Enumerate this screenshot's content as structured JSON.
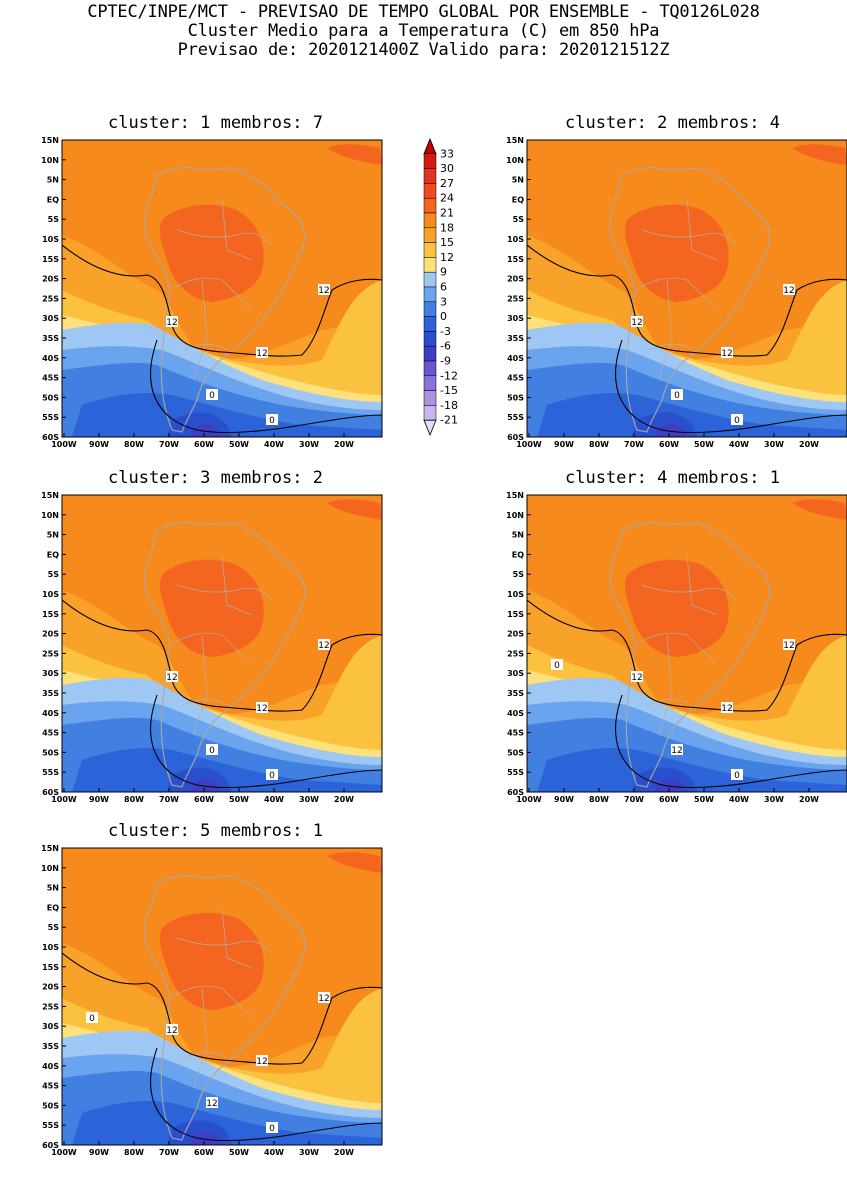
{
  "header": {
    "line1": "CPTEC/INPE/MCT - PREVISAO DE TEMPO GLOBAL POR ENSEMBLE - TQ0126L028",
    "line2": "Cluster Medio para a Temperatura (C) em 850 hPa",
    "line3": "Previsao de: 2020121400Z   Valido para: 2020121512Z"
  },
  "axes": {
    "lat_labels": [
      "15N",
      "10N",
      "5N",
      "EQ",
      "5S",
      "10S",
      "15S",
      "20S",
      "25S",
      "30S",
      "35S",
      "40S",
      "45S",
      "50S",
      "55S",
      "60S"
    ],
    "lon_labels": [
      "100W",
      "90W",
      "80W",
      "70W",
      "60W",
      "50W",
      "40W",
      "30W",
      "20W"
    ]
  },
  "colorbar": {
    "levels": [
      "33",
      "30",
      "27",
      "24",
      "21",
      "18",
      "15",
      "12",
      "9",
      "6",
      "3",
      "0",
      "-3",
      "-6",
      "-9",
      "-12",
      "-15",
      "-18",
      "-21"
    ],
    "colors": [
      "#c00000",
      "#d21a12",
      "#e3321e",
      "#ef4b1f",
      "#f4661f",
      "#f78a1c",
      "#f9a22a",
      "#fbc23f",
      "#fde17a",
      "#9fc7f4",
      "#6aa3ee",
      "#4180e0",
      "#2c63d8",
      "#2a4fcc",
      "#3e3ec4",
      "#6a56cc",
      "#8a72d8",
      "#a992e2",
      "#c8b6ee",
      "#e4dcf6"
    ]
  },
  "clusters": [
    {
      "id": "c1",
      "label": "cluster: 1   membros: 7",
      "contours": [
        "12",
        "12",
        "12",
        "0",
        "0"
      ]
    },
    {
      "id": "c2",
      "label": "cluster: 2   membros: 4",
      "contours": [
        "12",
        "12",
        "12",
        "0",
        "0"
      ]
    },
    {
      "id": "c3",
      "label": "cluster: 3   membros: 2",
      "contours": [
        "12",
        "12",
        "12",
        "0",
        "0"
      ]
    },
    {
      "id": "c4",
      "label": "cluster: 4   membros: 1",
      "contours": [
        "12",
        "12",
        "12",
        "12",
        "0",
        "0"
      ]
    },
    {
      "id": "c5",
      "label": "cluster: 5   membros: 1",
      "contours": [
        "12",
        "12",
        "12",
        "12",
        "0",
        "0"
      ]
    }
  ]
}
